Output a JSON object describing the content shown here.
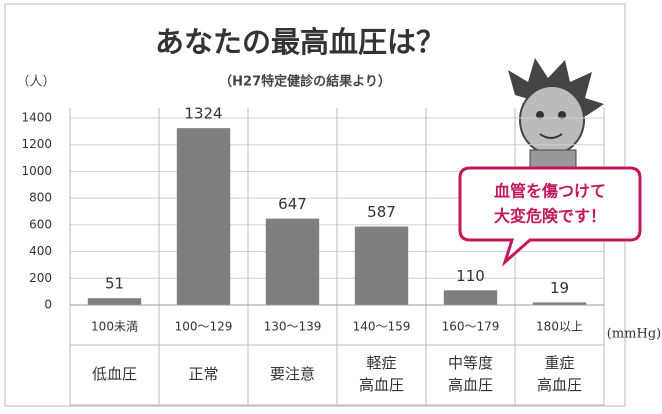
{
  "chart_data": {
    "type": "bar",
    "title": "あなたの最高血圧は？",
    "subtitle": "（H27特定健診の結果より）",
    "y_label": "（人）",
    "x_label": "(mmHg)",
    "categories": [
      "100未満",
      "100～129",
      "130～139",
      "140～159",
      "160～179",
      "180以上"
    ],
    "category_descriptions": [
      [
        "低血圧"
      ],
      [
        "正常"
      ],
      [
        "要注意"
      ],
      [
        "軽症",
        "高血圧"
      ],
      [
        "中等度",
        "高血圧"
      ],
      [
        "重症",
        "高血圧"
      ]
    ],
    "values": [
      51,
      1324,
      647,
      587,
      110,
      19
    ],
    "color": "#7f7f7f",
    "ylim": [
      0,
      1400
    ],
    "yticks": [
      0,
      200,
      400,
      600,
      800,
      1000,
      1200,
      1400
    ],
    "grid": true,
    "callout": [
      "血管を傷つけて",
      "大変危険です！"
    ]
  }
}
